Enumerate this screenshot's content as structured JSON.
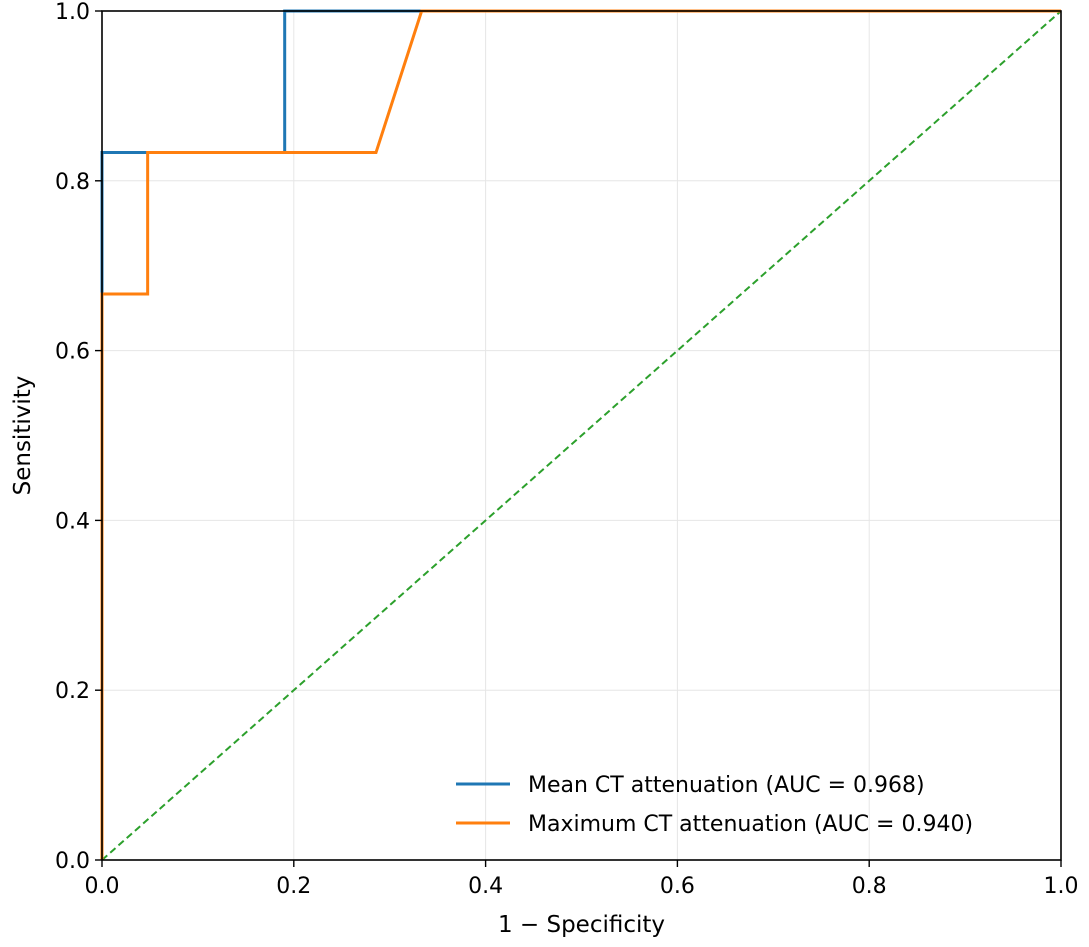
{
  "chart_data": {
    "type": "line",
    "title": "",
    "xlabel": "1 − Specificity",
    "ylabel": "Sensitivity",
    "xlim": [
      0,
      1
    ],
    "ylim": [
      0,
      1
    ],
    "xticks": [
      "0.0",
      "0.2",
      "0.4",
      "0.6",
      "0.8",
      "1.0"
    ],
    "yticks": [
      "0.0",
      "0.2",
      "0.4",
      "0.6",
      "0.8",
      "1.0"
    ],
    "grid": true,
    "legend_position": "lower-right",
    "series": [
      {
        "name": "Mean CT attenuation (AUC = 0.968)",
        "color": "#1f77b4",
        "style": "solid",
        "x": [
          0.0,
          0.0,
          0.0476,
          0.1905,
          0.1905,
          0.3333,
          1.0
        ],
        "y": [
          0.0,
          0.8333,
          0.8333,
          0.8333,
          1.0,
          1.0,
          1.0
        ]
      },
      {
        "name": "Maximum CT attenuation (AUC = 0.940)",
        "color": "#ff7f0e",
        "style": "solid",
        "x": [
          0.0,
          0.0,
          0.0476,
          0.0476,
          0.2857,
          0.3333,
          1.0
        ],
        "y": [
          0.0,
          0.6667,
          0.6667,
          0.8333,
          0.8333,
          1.0,
          1.0
        ]
      },
      {
        "name": "",
        "color": "#2ca02c",
        "style": "dashed",
        "x": [
          0.0,
          1.0
        ],
        "y": [
          0.0,
          1.0
        ]
      }
    ]
  }
}
